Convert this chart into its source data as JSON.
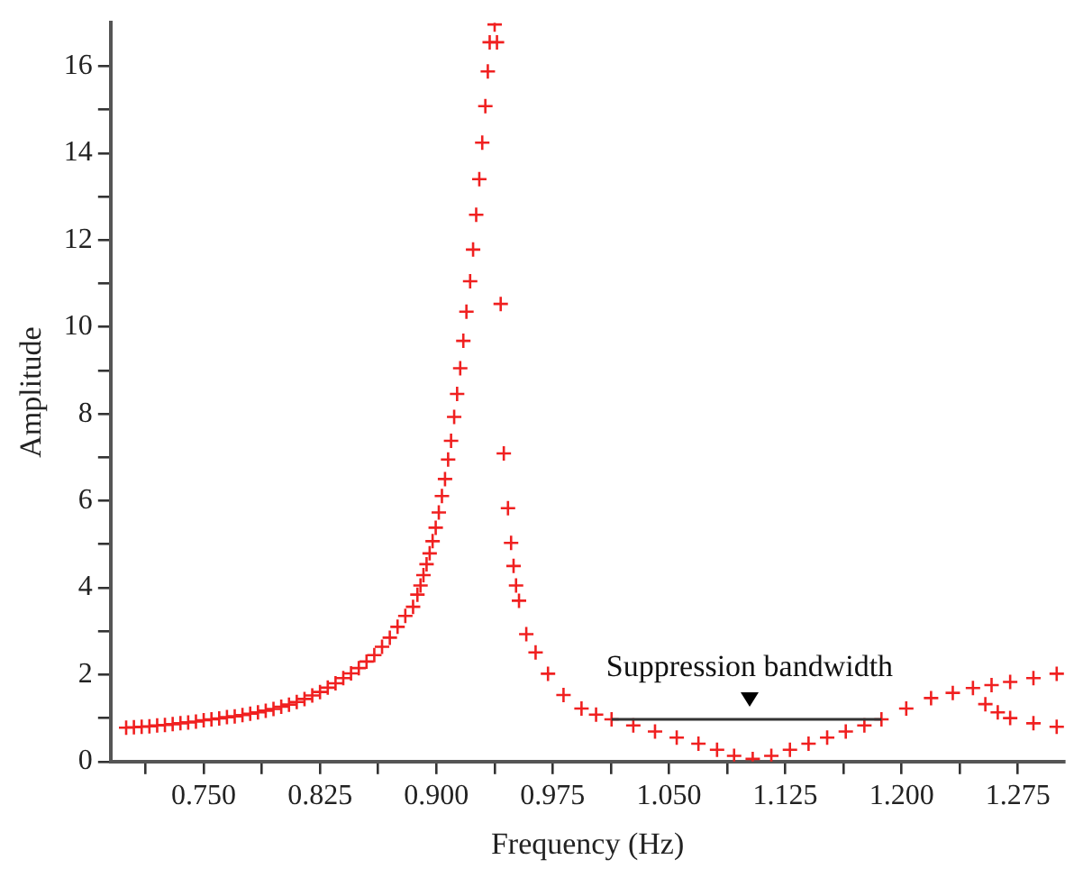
{
  "chart_data": {
    "type": "scatter",
    "xlabel": "Frequency (Hz)",
    "ylabel": "Amplitude",
    "marker": "cross",
    "grid": false,
    "legend": false,
    "xlim": [
      0.69,
      1.305
    ],
    "ylim": [
      0,
      17
    ],
    "xticks": [
      {
        "value": 0.7125,
        "label": null
      },
      {
        "value": 0.75,
        "label": "0.750"
      },
      {
        "value": 0.7875,
        "label": null
      },
      {
        "value": 0.825,
        "label": "0.825"
      },
      {
        "value": 0.8625,
        "label": null
      },
      {
        "value": 0.9,
        "label": "0.900"
      },
      {
        "value": 0.9375,
        "label": null
      },
      {
        "value": 0.975,
        "label": "0.975"
      },
      {
        "value": 1.0125,
        "label": null
      },
      {
        "value": 1.05,
        "label": "1.050"
      },
      {
        "value": 1.0875,
        "label": null
      },
      {
        "value": 1.125,
        "label": "1.125"
      },
      {
        "value": 1.1625,
        "label": null
      },
      {
        "value": 1.2,
        "label": "1.200"
      },
      {
        "value": 1.2375,
        "label": null
      },
      {
        "value": 1.275,
        "label": "1.275"
      }
    ],
    "yticks": [
      0,
      {
        "value": 1,
        "label": null
      },
      2,
      {
        "value": 3,
        "label": null
      },
      4,
      {
        "value": 5,
        "label": null
      },
      6,
      {
        "value": 7,
        "label": null
      },
      8,
      {
        "value": 9,
        "label": null
      },
      10,
      {
        "value": 11,
        "label": null
      },
      12,
      {
        "value": 13,
        "label": null
      },
      14,
      {
        "value": 15,
        "label": null
      },
      16
    ],
    "series": [
      {
        "color": "#f02020",
        "x": [
          0.7,
          0.705,
          0.71,
          0.715,
          0.72,
          0.725,
          0.73,
          0.735,
          0.74,
          0.745,
          0.75,
          0.755,
          0.76,
          0.765,
          0.77,
          0.775,
          0.78,
          0.785,
          0.79,
          0.795,
          0.8,
          0.805,
          0.81,
          0.815,
          0.82,
          0.825,
          0.83,
          0.835,
          0.84,
          0.845,
          0.85,
          0.855,
          0.86,
          0.865,
          0.87,
          0.875,
          0.88,
          0.885,
          0.8878,
          0.8898,
          0.8917,
          0.8937,
          0.8957,
          0.8976,
          0.8996,
          0.9016,
          0.9036,
          0.9056,
          0.9076,
          0.9095,
          0.9115,
          0.9134,
          0.9154,
          0.9174,
          0.9194,
          0.9218,
          0.9237,
          0.9257,
          0.9277,
          0.9296,
          0.9316,
          0.9332,
          0.9344,
          0.9376,
          0.9391,
          0.9415,
          0.9435,
          0.9462,
          0.9482,
          0.9498,
          0.9514,
          0.9533,
          0.958,
          0.964,
          0.972,
          0.982,
          0.9936,
          1.003,
          1.013,
          1.027,
          1.041,
          1.055,
          1.069,
          1.081,
          1.092,
          1.104,
          1.116,
          1.128,
          1.14,
          1.152,
          1.164,
          1.176,
          1.187,
          1.203,
          1.219,
          1.233,
          1.246,
          1.258,
          1.27,
          1.285,
          1.3,
          1.254,
          1.262,
          1.27,
          1.285,
          1.3
        ],
        "values": [
          0.78,
          0.79,
          0.8,
          0.81,
          0.83,
          0.84,
          0.86,
          0.88,
          0.9,
          0.92,
          0.95,
          0.97,
          0.99,
          1.02,
          1.04,
          1.07,
          1.1,
          1.13,
          1.17,
          1.21,
          1.26,
          1.31,
          1.37,
          1.44,
          1.52,
          1.6,
          1.7,
          1.8,
          1.92,
          2.03,
          2.15,
          2.3,
          2.45,
          2.64,
          2.85,
          3.1,
          3.35,
          3.56,
          3.84,
          4.05,
          4.29,
          4.54,
          4.79,
          5.07,
          5.38,
          5.73,
          6.11,
          6.5,
          6.95,
          7.38,
          7.93,
          8.46,
          9.05,
          9.68,
          10.35,
          11.05,
          11.78,
          12.58,
          13.4,
          14.24,
          15.08,
          15.88,
          16.55,
          16.96,
          16.55,
          10.53,
          7.09,
          5.83,
          5.03,
          4.5,
          4.05,
          3.7,
          2.93,
          2.51,
          2.02,
          1.53,
          1.22,
          1.08,
          0.97,
          0.83,
          0.69,
          0.55,
          0.41,
          0.27,
          0.13,
          0.06,
          0.13,
          0.27,
          0.41,
          0.55,
          0.69,
          0.83,
          0.97,
          1.22,
          1.46,
          1.58,
          1.69,
          1.76,
          1.83,
          1.92,
          2.02,
          1.32,
          1.13,
          1.0,
          0.88,
          0.8
        ]
      },
      {
        "type": "line",
        "color": "#333333",
        "marker": "none",
        "x": [
          1.013,
          1.187
        ],
        "values": [
          0.97,
          0.97
        ]
      }
    ],
    "annotations": [
      {
        "text": "Suppression bandwidth",
        "x": 1.102,
        "y": 0.97
      }
    ]
  }
}
